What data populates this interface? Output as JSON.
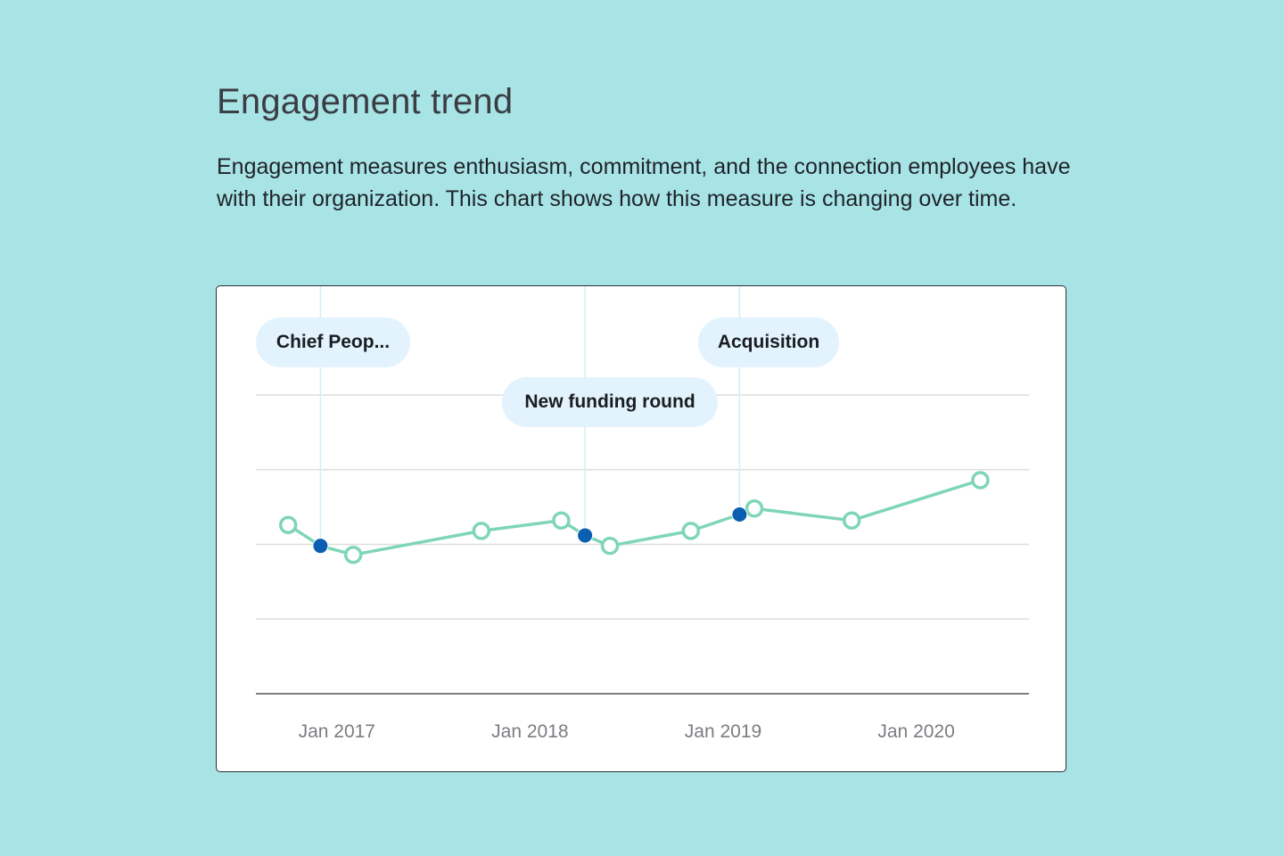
{
  "header": {
    "title": "Engagement trend",
    "description": "Engagement measures enthusiasm, commitment, and the connection employees have with their organization. This chart shows how this measure is changing over time."
  },
  "chart_data": {
    "type": "line",
    "title": "",
    "xlabel": "",
    "ylabel": "",
    "x_ticks": [
      "Jan 2017",
      "Jan 2018",
      "Jan 2019",
      "Jan 2020"
    ],
    "x_range": [
      "2016-08-01",
      "2020-08-01"
    ],
    "y_range": [
      0,
      100
    ],
    "gridlines": [
      0,
      25,
      50,
      75,
      100
    ],
    "grid": true,
    "y_tick_labels_visible": false,
    "series": [
      {
        "color": "#7ed6b6",
        "points": [
          {
            "x": "2016-10-01",
            "y": 56.5
          },
          {
            "x": "2017-02-01",
            "y": 46.5
          },
          {
            "x": "2017-10-01",
            "y": 54.5
          },
          {
            "x": "2018-03-01",
            "y": 58.0
          },
          {
            "x": "2018-06-01",
            "y": 49.5
          },
          {
            "x": "2018-11-01",
            "y": 54.5
          },
          {
            "x": "2019-03-01",
            "y": 62.0
          },
          {
            "x": "2019-09-01",
            "y": 58.0
          },
          {
            "x": "2020-05-01",
            "y": 71.5
          }
        ]
      }
    ],
    "events": [
      {
        "label": "Chief Peop...",
        "x": "2016-12-01",
        "y": 49.5,
        "color": "#0b5fb0"
      },
      {
        "label": "New funding round",
        "x": "2018-04-15",
        "y": 53.0,
        "color": "#0b5fb0"
      },
      {
        "label": "Acquisition",
        "x": "2019-02-01",
        "y": 60.0,
        "color": "#0b5fb0"
      }
    ],
    "colors": {
      "line": "#7ed6b6",
      "event_marker": "#0b5fb0",
      "event_pill": "#e2f3fd",
      "grid": "#dedede",
      "axis": "#555555",
      "tick_label": "#7a7d82"
    }
  }
}
